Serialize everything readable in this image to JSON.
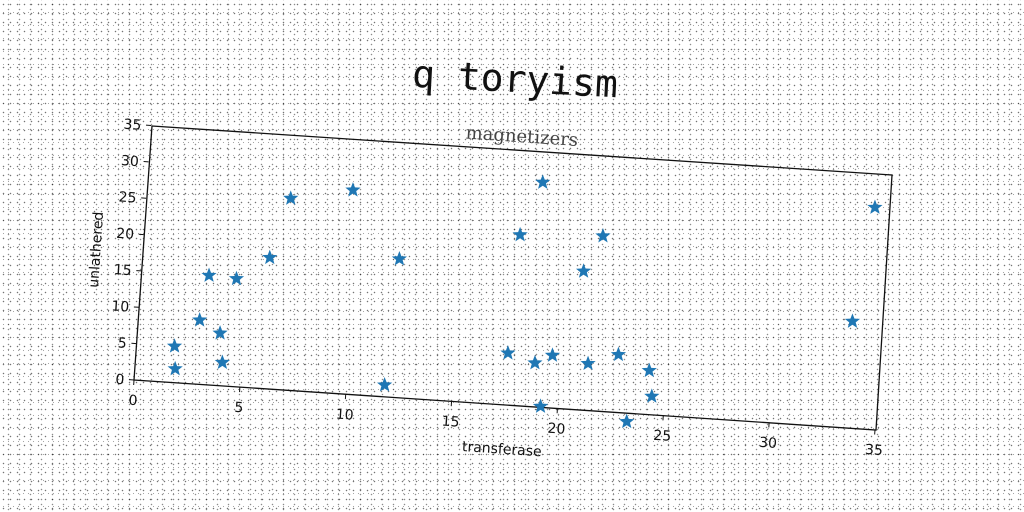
{
  "chart_data": {
    "type": "scatter",
    "title": "q toryism",
    "subtitle": "magnetizers",
    "xlabel": "transferase",
    "ylabel": "unlathered",
    "xlim": [
      0,
      35
    ],
    "ylim": [
      0,
      35
    ],
    "xticks": [
      0,
      5,
      10,
      15,
      20,
      25,
      30,
      35
    ],
    "yticks": [
      0,
      5,
      10,
      15,
      20,
      25,
      30,
      35
    ],
    "marker": "star",
    "color": "#1f77b4",
    "grid": false,
    "points": [
      {
        "x": 1.8,
        "y": 5.0
      },
      {
        "x": 1.9,
        "y": 1.9
      },
      {
        "x": 2.9,
        "y": 8.8
      },
      {
        "x": 3.2,
        "y": 15.0
      },
      {
        "x": 3.9,
        "y": 7.2
      },
      {
        "x": 4.1,
        "y": 3.2
      },
      {
        "x": 4.5,
        "y": 14.8
      },
      {
        "x": 6.0,
        "y": 18.0
      },
      {
        "x": 6.8,
        "y": 26.3
      },
      {
        "x": 9.7,
        "y": 28.0
      },
      {
        "x": 11.8,
        "y": 1.6
      },
      {
        "x": 12.1,
        "y": 19.0
      },
      {
        "x": 17.5,
        "y": 7.1
      },
      {
        "x": 17.7,
        "y": 23.4
      },
      {
        "x": 18.6,
        "y": 30.8
      },
      {
        "x": 18.8,
        "y": 6.0
      },
      {
        "x": 19.2,
        "y": 0.1
      },
      {
        "x": 19.6,
        "y": 7.2
      },
      {
        "x": 20.8,
        "y": 19.0
      },
      {
        "x": 21.3,
        "y": 6.4
      },
      {
        "x": 21.6,
        "y": 24.0
      },
      {
        "x": 22.7,
        "y": 7.9
      },
      {
        "x": 23.3,
        "y": -1.2
      },
      {
        "x": 24.2,
        "y": 6.0
      },
      {
        "x": 24.4,
        "y": 2.5
      },
      {
        "x": 33.6,
        "y": 14.6
      },
      {
        "x": 34.3,
        "y": 30.4
      }
    ]
  }
}
